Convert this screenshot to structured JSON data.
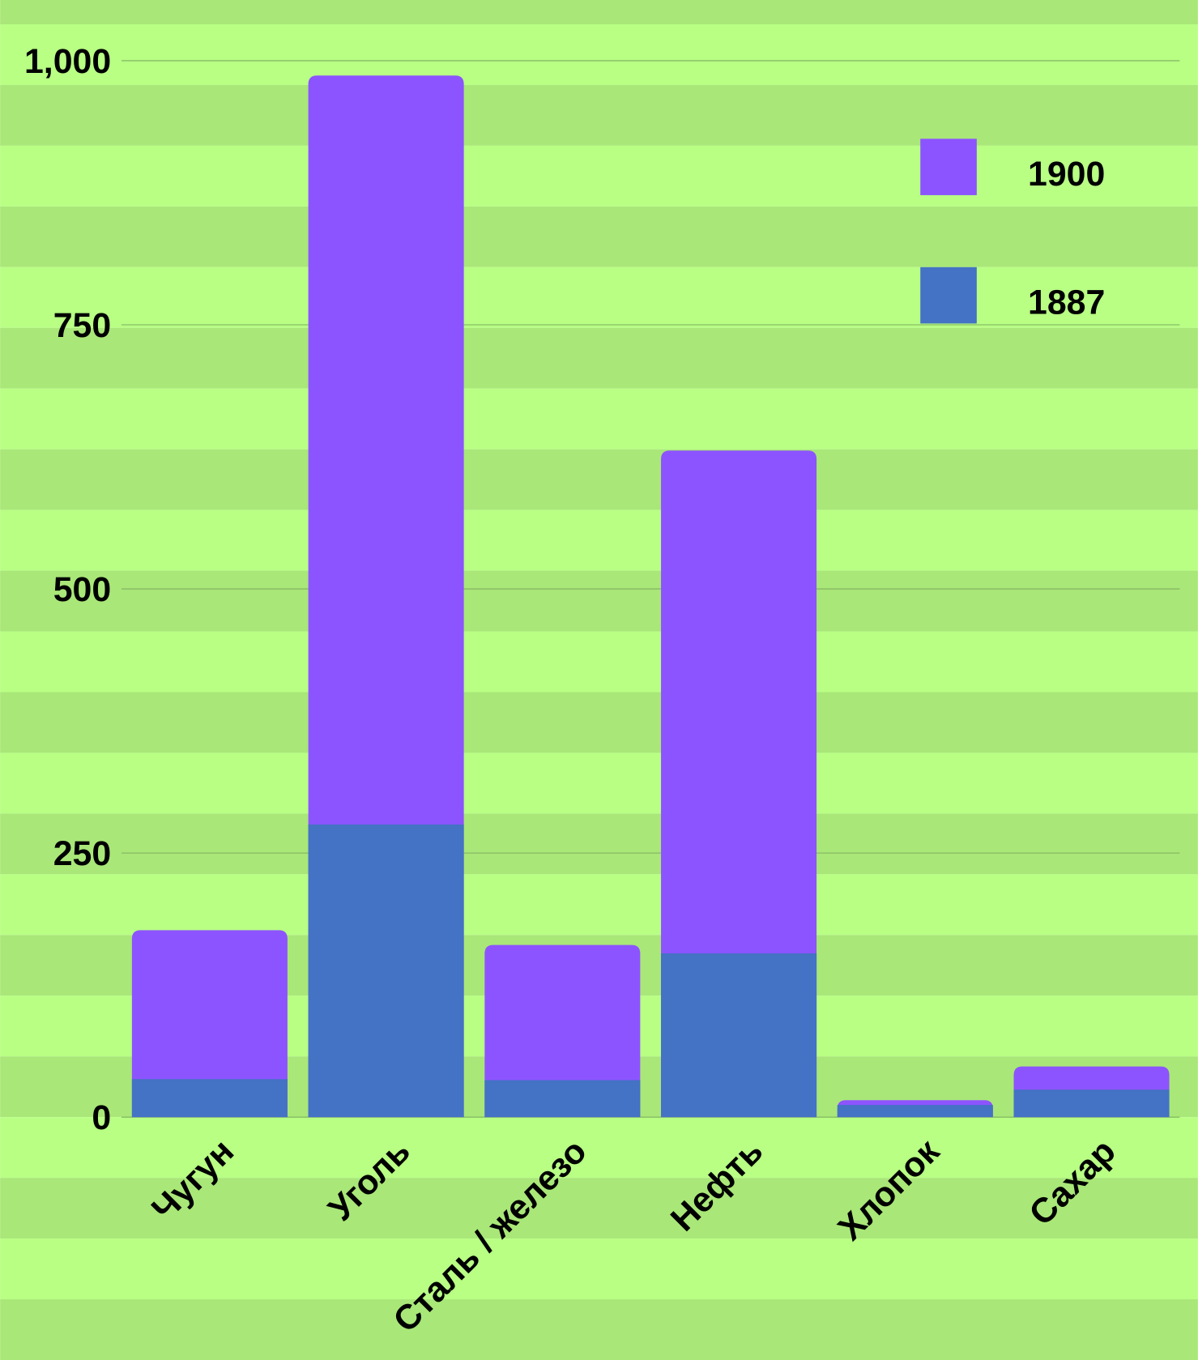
{
  "chart_data": {
    "type": "bar",
    "categories": [
      "Чугун",
      "Уголь",
      "Сталь / железо",
      "Нефть",
      "Хлопок",
      "Сахар"
    ],
    "series": [
      {
        "name": "1900",
        "color": "#8c54ff",
        "values": [
          177,
          986,
          163,
          631,
          16,
          48
        ]
      },
      {
        "name": "1887",
        "color": "#4472c4",
        "values": [
          36,
          277,
          35,
          155,
          11.5,
          26
        ]
      }
    ],
    "ylim": [
      0,
      1000
    ],
    "yticks": [
      0,
      250,
      500,
      750,
      {
        "value": 1000,
        "label": "1,000"
      }
    ],
    "grid": true,
    "legend": "upper right"
  }
}
